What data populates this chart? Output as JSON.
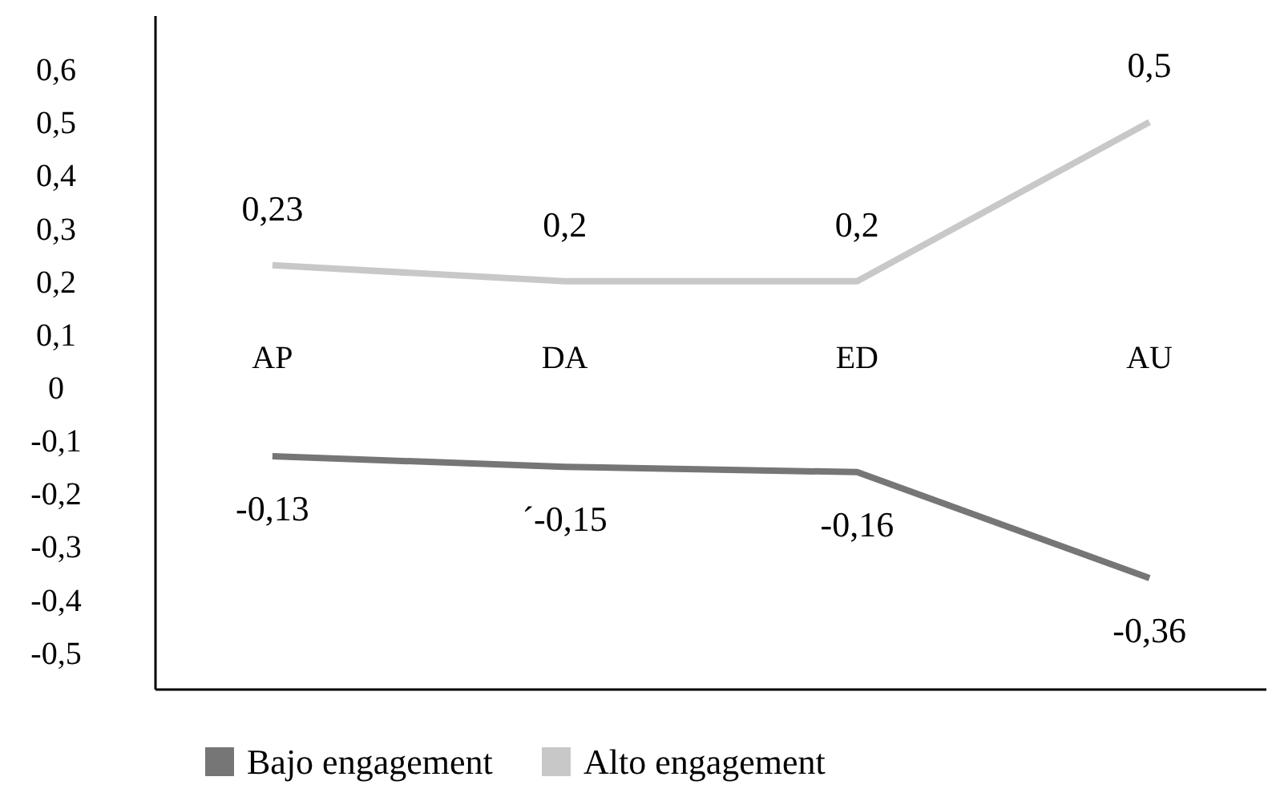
{
  "chart_data": {
    "type": "line",
    "categories": [
      "AP",
      "DA",
      "ED",
      "AU"
    ],
    "series": [
      {
        "name": "Bajo engagement",
        "color": "#767676",
        "values": [
          -0.13,
          -0.15,
          -0.16,
          -0.36
        ],
        "value_labels": [
          "-0,13",
          "´-0,15",
          "-0,16",
          "-0,36"
        ]
      },
      {
        "name": "Alto engagement",
        "color": "#c8c8c8",
        "values": [
          0.23,
          0.2,
          0.2,
          0.5
        ],
        "value_labels": [
          "0,23",
          "0,2",
          "0,2",
          "0,5"
        ]
      }
    ],
    "ylim": [
      -0.57,
      0.7
    ],
    "yticks": [
      {
        "value": -0.5,
        "label": "-0,5"
      },
      {
        "value": -0.4,
        "label": "-0,4"
      },
      {
        "value": -0.3,
        "label": "-0,3"
      },
      {
        "value": -0.2,
        "label": "-0,2"
      },
      {
        "value": -0.1,
        "label": "-0,1"
      },
      {
        "value": 0,
        "label": "0"
      },
      {
        "value": 0.1,
        "label": "0,1"
      },
      {
        "value": 0.2,
        "label": "0,2"
      },
      {
        "value": 0.3,
        "label": "0,3"
      },
      {
        "value": 0.4,
        "label": "0,4"
      },
      {
        "value": 0.5,
        "label": "0,5"
      },
      {
        "value": 0.6,
        "label": "0,6"
      }
    ],
    "grid": false,
    "legend": "bottom",
    "marker": "none",
    "line_style": "solid"
  }
}
